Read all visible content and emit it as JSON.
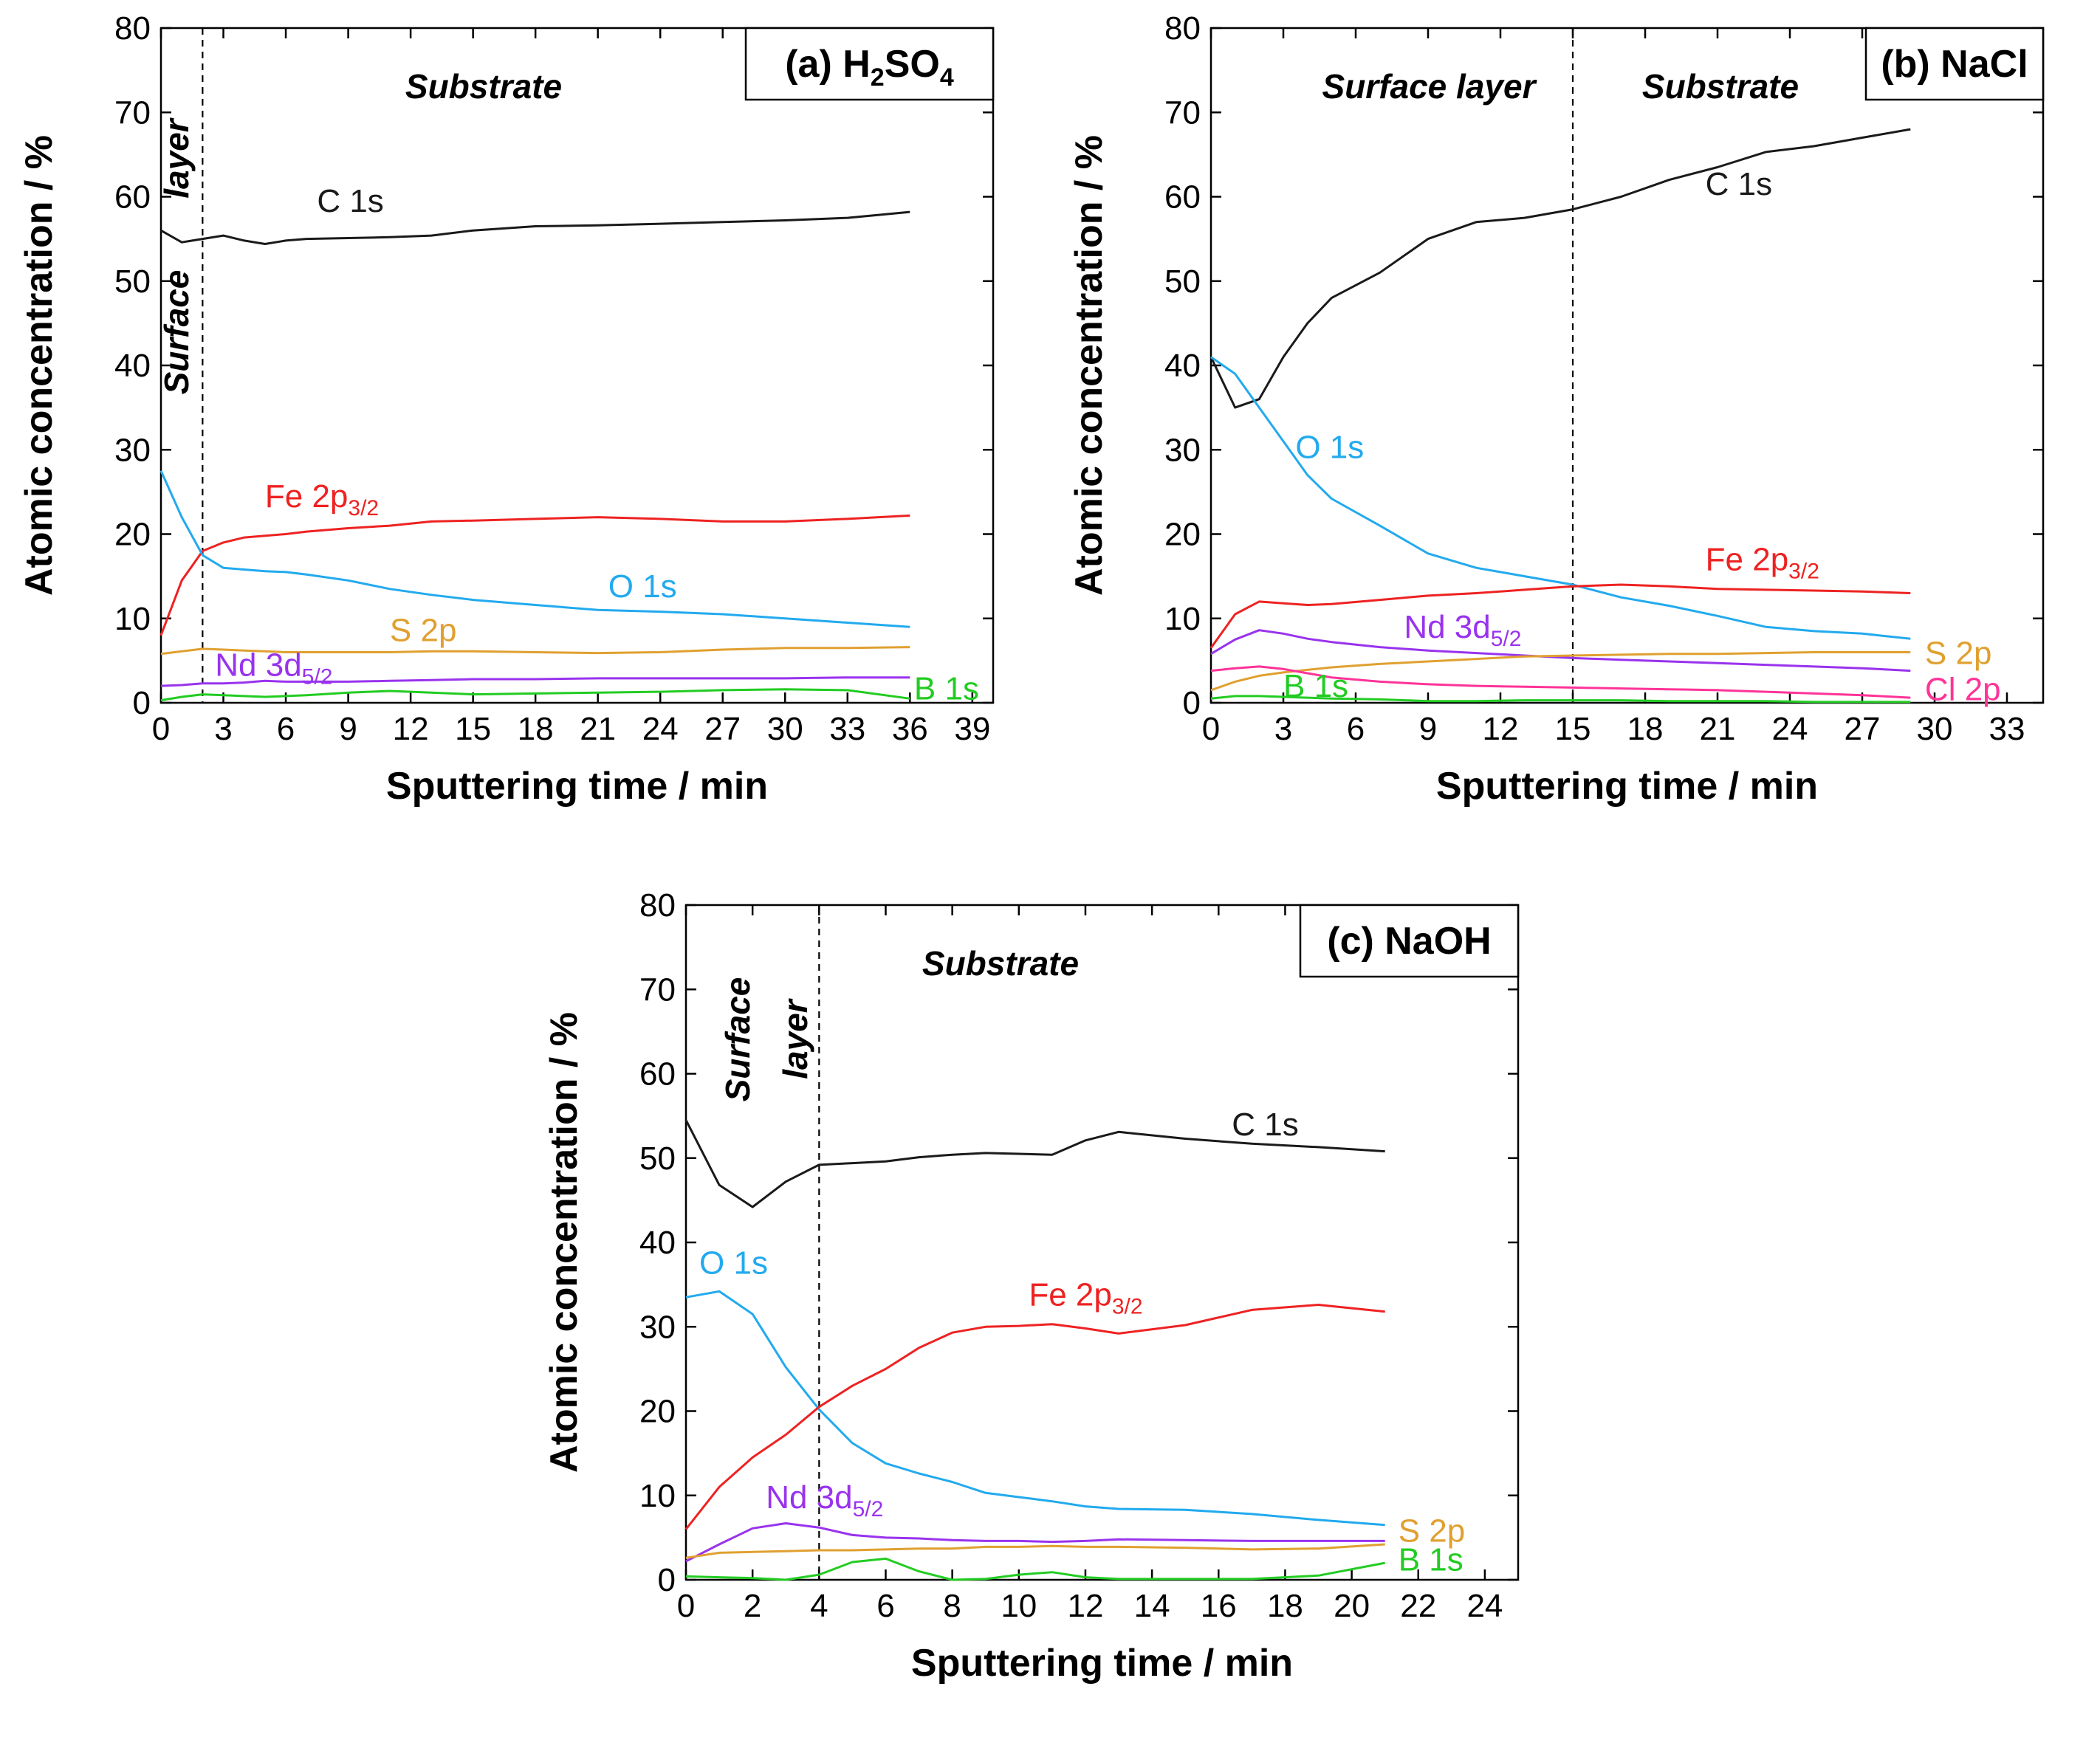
{
  "colors": {
    "C 1s": "#1a1a1a",
    "O 1s": "#22aaee",
    "Fe 2p3/2": "#ee2222",
    "S 2p": "#e0a030",
    "Nd 3d5/2": "#9933ee",
    "B 1s": "#22cc22",
    "Cl 2p": "#ff3399"
  },
  "chart_data": [
    {
      "id": "a",
      "type": "line",
      "title": "(a) H2SO4",
      "title_parts": {
        "a": "(a) H",
        "b": "2",
        "c": "SO",
        "d": "4"
      },
      "xlabel": "Sputtering time / min",
      "ylabel": "Atomic concentration / %",
      "xlim": [
        0,
        40
      ],
      "ylim": [
        0,
        80
      ],
      "xticks": [
        0,
        3,
        6,
        9,
        12,
        15,
        18,
        21,
        24,
        27,
        30,
        33,
        36,
        39
      ],
      "yticks": [
        0,
        10,
        20,
        30,
        40,
        50,
        60,
        70,
        80
      ],
      "divider_x": 2,
      "region_labels": {
        "left": "Surface layer",
        "left_top": "layer",
        "left_bottom": "Surface",
        "right": "Substrate"
      },
      "series": [
        {
          "name": "C 1s",
          "x": [
            0,
            1,
            2,
            3,
            4,
            5,
            6,
            7,
            9,
            11,
            13,
            15,
            18,
            21,
            24,
            27,
            30,
            33,
            36
          ],
          "values": [
            56,
            54.6,
            55,
            55.4,
            54.8,
            54.4,
            54.8,
            55,
            55.1,
            55.2,
            55.4,
            56,
            56.5,
            56.6,
            56.8,
            57,
            57.2,
            57.5,
            58.2
          ]
        },
        {
          "name": "Fe 2p3/2",
          "x": [
            0,
            1,
            2,
            3,
            4,
            5,
            6,
            7,
            9,
            11,
            13,
            15,
            18,
            21,
            24,
            27,
            30,
            33,
            36
          ],
          "values": [
            8,
            14.5,
            18,
            19,
            19.6,
            19.8,
            20,
            20.3,
            20.7,
            21,
            21.5,
            21.6,
            21.8,
            22,
            21.8,
            21.5,
            21.5,
            21.8,
            22.2
          ]
        },
        {
          "name": "O 1s",
          "x": [
            0,
            1,
            2,
            3,
            4,
            5,
            6,
            7,
            9,
            11,
            13,
            15,
            18,
            21,
            24,
            27,
            30,
            33,
            36
          ],
          "values": [
            27.5,
            22,
            17.5,
            16,
            15.8,
            15.6,
            15.5,
            15.2,
            14.5,
            13.5,
            12.8,
            12.2,
            11.6,
            11,
            10.8,
            10.5,
            10,
            9.5,
            9
          ]
        },
        {
          "name": "S 2p",
          "x": [
            0,
            1,
            2,
            3,
            4,
            5,
            6,
            7,
            9,
            11,
            13,
            15,
            18,
            21,
            24,
            27,
            30,
            33,
            36
          ],
          "values": [
            5.8,
            6.1,
            6.4,
            6.3,
            6.2,
            6.1,
            6,
            6,
            6,
            6,
            6.1,
            6.1,
            6,
            5.9,
            6,
            6.3,
            6.5,
            6.5,
            6.6
          ]
        },
        {
          "name": "Nd 3d5/2",
          "x": [
            0,
            1,
            2,
            3,
            4,
            5,
            6,
            7,
            9,
            11,
            13,
            15,
            18,
            21,
            24,
            27,
            30,
            33,
            36
          ],
          "values": [
            2,
            2.1,
            2.3,
            2.3,
            2.4,
            2.6,
            2.5,
            2.5,
            2.5,
            2.6,
            2.7,
            2.8,
            2.8,
            2.9,
            2.9,
            2.9,
            2.9,
            3,
            3
          ]
        },
        {
          "name": "B 1s",
          "x": [
            0,
            1,
            2,
            3,
            4,
            5,
            6,
            7,
            9,
            11,
            13,
            15,
            18,
            21,
            24,
            27,
            30,
            33,
            36
          ],
          "values": [
            0.3,
            0.7,
            1,
            0.9,
            0.8,
            0.7,
            0.8,
            0.9,
            1.2,
            1.4,
            1.2,
            1,
            1.1,
            1.2,
            1.3,
            1.5,
            1.6,
            1.5,
            0.5
          ]
        }
      ],
      "labels": [
        {
          "series": "C 1s",
          "text": "C 1s",
          "x": 7.5,
          "y": 58.2
        },
        {
          "series": "Fe 2p3/2",
          "text": "Fe 2p",
          "sub": "3/2",
          "x": 5,
          "y": 23.2
        },
        {
          "series": "O 1s",
          "text": "O 1s",
          "x": 21.5,
          "y": 12.5
        },
        {
          "series": "S 2p",
          "text": "S 2p",
          "x": 11,
          "y": 7.3
        },
        {
          "series": "Nd 3d5/2",
          "text": "Nd 3d",
          "sub": "5/2",
          "x": 2.6,
          "y": 3.2
        },
        {
          "series": "B 1s",
          "text": "B 1s",
          "x": 36.2,
          "y": 0.4
        }
      ]
    },
    {
      "id": "b",
      "type": "line",
      "title": "(b) NaCl",
      "xlabel": "Sputtering time / min",
      "ylabel": "Atomic concentration / %",
      "xlim": [
        0,
        34.5
      ],
      "ylim": [
        0,
        80
      ],
      "xticks": [
        0,
        3,
        6,
        9,
        12,
        15,
        18,
        21,
        24,
        27,
        30,
        33
      ],
      "yticks": [
        0,
        10,
        20,
        30,
        40,
        50,
        60,
        70,
        80
      ],
      "divider_x": 15,
      "region_labels": {
        "left": "Surface layer",
        "right": "Substrate"
      },
      "series": [
        {
          "name": "C 1s",
          "x": [
            0,
            1,
            2,
            3,
            4,
            5,
            7,
            9,
            11,
            13,
            15,
            17,
            19,
            21,
            23,
            25,
            27,
            29
          ],
          "values": [
            41,
            35,
            36,
            41,
            45,
            48,
            51,
            55,
            57,
            57.5,
            58.5,
            60,
            62,
            63.5,
            65.3,
            66,
            67,
            68
          ]
        },
        {
          "name": "O 1s",
          "x": [
            0,
            1,
            2,
            3,
            4,
            5,
            7,
            9,
            11,
            13,
            15,
            17,
            19,
            21,
            23,
            25,
            27,
            29
          ],
          "values": [
            41,
            39,
            35,
            31,
            27,
            24.2,
            21,
            17.7,
            16,
            15,
            14,
            12.5,
            11.5,
            10.3,
            9,
            8.5,
            8.2,
            7.6
          ]
        },
        {
          "name": "Fe 2p3/2",
          "x": [
            0,
            1,
            2,
            3,
            4,
            5,
            7,
            9,
            11,
            13,
            15,
            17,
            19,
            21,
            23,
            25,
            27,
            29
          ],
          "values": [
            6.5,
            10.5,
            12,
            11.8,
            11.6,
            11.7,
            12.2,
            12.7,
            13,
            13.4,
            13.8,
            14,
            13.8,
            13.5,
            13.4,
            13.3,
            13.2,
            13
          ]
        },
        {
          "name": "Nd 3d5/2",
          "x": [
            0,
            1,
            2,
            3,
            4,
            5,
            7,
            9,
            11,
            13,
            15,
            17,
            19,
            21,
            23,
            25,
            27,
            29
          ],
          "values": [
            5.8,
            7.5,
            8.6,
            8.2,
            7.6,
            7.2,
            6.6,
            6.2,
            5.9,
            5.6,
            5.3,
            5.1,
            4.9,
            4.7,
            4.5,
            4.3,
            4.1,
            3.8
          ]
        },
        {
          "name": "S 2p",
          "x": [
            0,
            1,
            2,
            3,
            4,
            5,
            7,
            9,
            11,
            13,
            15,
            17,
            19,
            21,
            23,
            25,
            27,
            29
          ],
          "values": [
            1.5,
            2.5,
            3.2,
            3.6,
            3.9,
            4.2,
            4.6,
            4.9,
            5.2,
            5.5,
            5.6,
            5.7,
            5.8,
            5.8,
            5.9,
            6,
            6,
            6
          ]
        },
        {
          "name": "Cl 2p",
          "x": [
            0,
            1,
            2,
            3,
            4,
            5,
            7,
            9,
            11,
            13,
            15,
            17,
            19,
            21,
            23,
            25,
            27,
            29
          ],
          "values": [
            3.8,
            4.1,
            4.3,
            4,
            3.5,
            3,
            2.5,
            2.2,
            2,
            1.9,
            1.8,
            1.7,
            1.6,
            1.5,
            1.3,
            1.1,
            0.9,
            0.6
          ]
        },
        {
          "name": "B 1s",
          "x": [
            0,
            1,
            2,
            3,
            4,
            5,
            7,
            9,
            11,
            13,
            15,
            17,
            19,
            21,
            23,
            25,
            27,
            29
          ],
          "values": [
            0.5,
            0.8,
            0.8,
            0.7,
            0.6,
            0.5,
            0.4,
            0.2,
            0.2,
            0.3,
            0.3,
            0.3,
            0.2,
            0.2,
            0.2,
            0.1,
            0.1,
            0.1
          ]
        }
      ],
      "labels": [
        {
          "series": "C 1s",
          "text": "C 1s",
          "x": 20.5,
          "y": 60.2
        },
        {
          "series": "O 1s",
          "text": "O 1s",
          "x": 3.5,
          "y": 29
        },
        {
          "series": "Fe 2p3/2",
          "text": "Fe 2p",
          "sub": "3/2",
          "x": 20.5,
          "y": 15.7
        },
        {
          "series": "Nd 3d5/2",
          "text": "Nd 3d",
          "sub": "5/2",
          "x": 8,
          "y": 7.7
        },
        {
          "series": "S 2p",
          "text": "S 2p",
          "x": 29.6,
          "y": 4.6
        },
        {
          "series": "Cl 2p",
          "text": "Cl 2p",
          "x": 29.6,
          "y": 0.3
        },
        {
          "series": "B 1s",
          "text": "B 1s",
          "x": 3,
          "y": 0.7
        }
      ]
    },
    {
      "id": "c",
      "type": "line",
      "title": "(c) NaOH",
      "xlabel": "Sputtering time / min",
      "ylabel": "Atomic concentration / %",
      "xlim": [
        0,
        25
      ],
      "ylim": [
        0,
        80
      ],
      "xticks": [
        0,
        2,
        4,
        6,
        8,
        10,
        12,
        14,
        16,
        18,
        20,
        22,
        24
      ],
      "yticks": [
        0,
        10,
        20,
        30,
        40,
        50,
        60,
        70,
        80
      ],
      "divider_x": 4,
      "region_labels": {
        "left": "Surface layer",
        "left_top": "Surface",
        "left_bottom": "layer",
        "right": "Substrate"
      },
      "series": [
        {
          "name": "C 1s",
          "x": [
            0,
            1,
            2,
            3,
            4,
            5,
            6,
            7,
            8,
            9,
            10,
            11,
            12,
            13,
            15,
            17,
            19,
            21
          ],
          "values": [
            54.5,
            46.8,
            44.2,
            47.2,
            49.2,
            49.4,
            49.6,
            50.1,
            50.4,
            50.6,
            50.5,
            50.4,
            52.1,
            53.1,
            52.3,
            51.7,
            51.3,
            50.8
          ]
        },
        {
          "name": "O 1s",
          "x": [
            0,
            1,
            2,
            3,
            4,
            5,
            6,
            7,
            8,
            9,
            10,
            11,
            12,
            13,
            15,
            17,
            19,
            21
          ],
          "values": [
            33.5,
            34.2,
            31.5,
            25.2,
            20.2,
            16.2,
            13.8,
            12.6,
            11.6,
            10.3,
            9.8,
            9.3,
            8.7,
            8.4,
            8.3,
            7.8,
            7.1,
            6.5
          ]
        },
        {
          "name": "Fe 2p3/2",
          "x": [
            0,
            1,
            2,
            3,
            4,
            5,
            6,
            7,
            8,
            9,
            10,
            11,
            12,
            13,
            15,
            17,
            19,
            21
          ],
          "values": [
            6,
            11,
            14.5,
            17.2,
            20.5,
            23,
            25,
            27.5,
            29.3,
            30,
            30.1,
            30.3,
            29.8,
            29.2,
            30.2,
            32,
            32.6,
            31.8
          ]
        },
        {
          "name": "Nd 3d5/2",
          "x": [
            0,
            1,
            2,
            3,
            4,
            5,
            6,
            7,
            8,
            9,
            10,
            11,
            12,
            13,
            15,
            17,
            19,
            21
          ],
          "values": [
            2.2,
            4.2,
            6.1,
            6.7,
            6.2,
            5.3,
            5,
            4.9,
            4.7,
            4.6,
            4.6,
            4.5,
            4.6,
            4.8,
            4.7,
            4.6,
            4.6,
            4.6
          ]
        },
        {
          "name": "S 2p",
          "x": [
            0,
            1,
            2,
            3,
            4,
            5,
            6,
            7,
            8,
            9,
            10,
            11,
            12,
            13,
            15,
            17,
            19,
            21
          ],
          "values": [
            2.6,
            3.2,
            3.3,
            3.4,
            3.5,
            3.5,
            3.6,
            3.7,
            3.7,
            3.9,
            3.9,
            4,
            3.9,
            3.9,
            3.8,
            3.6,
            3.7,
            4.2
          ]
        },
        {
          "name": "B 1s",
          "x": [
            0,
            1,
            2,
            3,
            4,
            5,
            6,
            7,
            8,
            9,
            10,
            11,
            12,
            13,
            15,
            17,
            19,
            21
          ],
          "values": [
            0.4,
            0.3,
            0.2,
            0,
            0.6,
            2.1,
            2.5,
            1,
            0,
            0.1,
            0.6,
            0.9,
            0.3,
            0.1,
            0.1,
            0.1,
            0.5,
            2
          ]
        }
      ],
      "labels": [
        {
          "series": "C 1s",
          "text": "C 1s",
          "x": 16.4,
          "y": 52.7
        },
        {
          "series": "O 1s",
          "text": "O 1s",
          "x": 0.4,
          "y": 36.3
        },
        {
          "series": "Fe 2p3/2",
          "text": "Fe 2p",
          "sub": "3/2",
          "x": 10.3,
          "y": 32.5
        },
        {
          "series": "Nd 3d5/2",
          "text": "Nd 3d",
          "sub": "5/2",
          "x": 2.4,
          "y": 8.5
        },
        {
          "series": "S 2p",
          "text": "S 2p",
          "x": 21.4,
          "y": 4.5
        },
        {
          "series": "B 1s",
          "text": "B 1s",
          "x": 21.4,
          "y": 1.1
        }
      ]
    }
  ]
}
